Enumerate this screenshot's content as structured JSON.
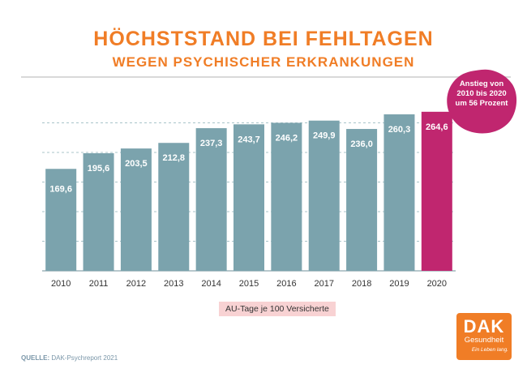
{
  "header": {
    "title": "HÖCHSTSTAND BEI FEHLTAGEN",
    "subtitle": "WEGEN PSYCHISCHER ERKRANKUNGEN"
  },
  "badge": {
    "lines": [
      "Anstieg von",
      "2010 bis 2020",
      "um 56 Prozent"
    ],
    "color": "#c0266f"
  },
  "legend_label": "AU-Tage je 100 Versicherte",
  "source": {
    "label": "QUELLE:",
    "text": "DAK-Psychreport 2021"
  },
  "logo": {
    "brand": "DAK",
    "name": "Gesundheit",
    "tagline": "Ein Leben lang."
  },
  "colors": {
    "bar": "#7ba3ad",
    "highlight": "#c0266f",
    "accent": "#f07d26"
  },
  "chart_data": {
    "type": "bar",
    "categories": [
      "2010",
      "2011",
      "2012",
      "2013",
      "2014",
      "2015",
      "2016",
      "2017",
      "2018",
      "2019",
      "2020"
    ],
    "values": [
      169.6,
      195.6,
      203.5,
      212.8,
      237.3,
      243.7,
      246.2,
      249.9,
      236.0,
      260.3,
      264.6
    ],
    "value_labels": [
      "169,6",
      "195,6",
      "203,5",
      "212,8",
      "237,3",
      "243,7",
      "246,2",
      "249,9",
      "236,0",
      "260,3",
      "264,6"
    ],
    "highlight_index": 10,
    "ylim": [
      0,
      290
    ],
    "grid": true,
    "legend_position": "bottom-center"
  }
}
